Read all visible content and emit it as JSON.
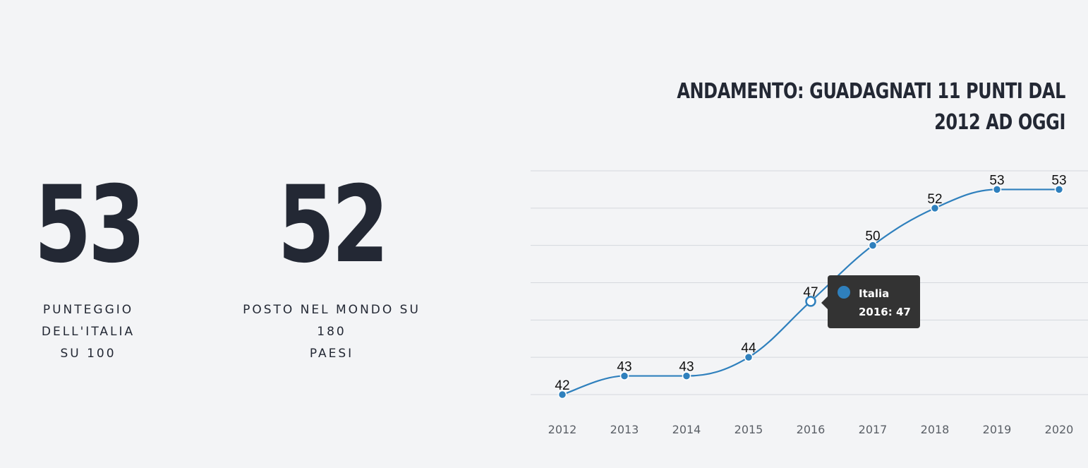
{
  "stats": [
    {
      "value": "53",
      "label_lines": [
        "PUNTEGGIO DELL'ITALIA",
        "SU 100"
      ]
    },
    {
      "value": "52",
      "label_lines": [
        "POSTO NEL MONDO SU 180",
        "PAESI"
      ]
    }
  ],
  "chart_data": {
    "type": "line",
    "title": "ANDAMENTO: GUADAGNATI 11 PUNTI DAL 2012 AD OGGI",
    "categories": [
      "2012",
      "2013",
      "2014",
      "2015",
      "2016",
      "2017",
      "2018",
      "2019",
      "2020"
    ],
    "series": [
      {
        "name": "Italia",
        "values": [
          42,
          43,
          43,
          44,
          47,
          50,
          52,
          53,
          53
        ],
        "color": "#2f80bd"
      }
    ],
    "ylim": [
      42,
      54
    ],
    "grid": true,
    "data_labels": true,
    "tooltip": {
      "series": "Italia",
      "text": "2016: 47",
      "category": "2016"
    }
  }
}
